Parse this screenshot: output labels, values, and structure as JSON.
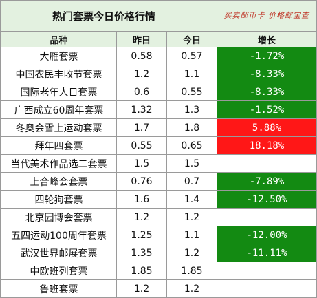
{
  "header": {
    "title": "热门套票今日价格行情",
    "watermark": "买卖邮币卡 价格邮宝查"
  },
  "columns": [
    "品种",
    "昨日",
    "今日",
    "增长"
  ],
  "rows": [
    {
      "name": "大雁套票",
      "yesterday": "0.58",
      "today": "0.57",
      "change": "-1.72%",
      "trend": "down"
    },
    {
      "name": "中国农民丰收节套票",
      "yesterday": "1.2",
      "today": "1.1",
      "change": "-8.33%",
      "trend": "down"
    },
    {
      "name": "国际老年人日套票",
      "yesterday": "0.6",
      "today": "0.55",
      "change": "-8.33%",
      "trend": "down"
    },
    {
      "name": "广西成立60周年套票",
      "yesterday": "1.32",
      "today": "1.3",
      "change": "-1.52%",
      "trend": "down"
    },
    {
      "name": "冬奥会雪上运动套票",
      "yesterday": "1.7",
      "today": "1.8",
      "change": "5.88%",
      "trend": "up"
    },
    {
      "name": "拜年四套票",
      "yesterday": "0.55",
      "today": "0.65",
      "change": "18.18%",
      "trend": "up"
    },
    {
      "name": "当代美术作品选二套票",
      "yesterday": "1.5",
      "today": "1.5",
      "change": "",
      "trend": "flat"
    },
    {
      "name": "上合峰会套票",
      "yesterday": "0.76",
      "today": "0.7",
      "change": "-7.89%",
      "trend": "down"
    },
    {
      "name": "四轮狗套票",
      "yesterday": "1.6",
      "today": "1.4",
      "change": "-12.50%",
      "trend": "down"
    },
    {
      "name": "北京园博会套票",
      "yesterday": "1.2",
      "today": "1.2",
      "change": "",
      "trend": "flat"
    },
    {
      "name": "五四运动100周年套票",
      "yesterday": "1.25",
      "today": "1.1",
      "change": "-12.00%",
      "trend": "down"
    },
    {
      "name": "武汉世界邮展套票",
      "yesterday": "1.35",
      "today": "1.2",
      "change": "-11.11%",
      "trend": "down"
    },
    {
      "name": "中欧班列套票",
      "yesterday": "1.85",
      "today": "1.85",
      "change": "",
      "trend": "flat"
    },
    {
      "name": "鲁班套票",
      "yesterday": "1.2",
      "today": "1.2",
      "change": "",
      "trend": "flat"
    }
  ],
  "colors": {
    "header_bg": "#e3f1e0",
    "down_bg": "#138a12",
    "up_bg": "#ff1717",
    "grid_line": "#9a9a9a"
  }
}
